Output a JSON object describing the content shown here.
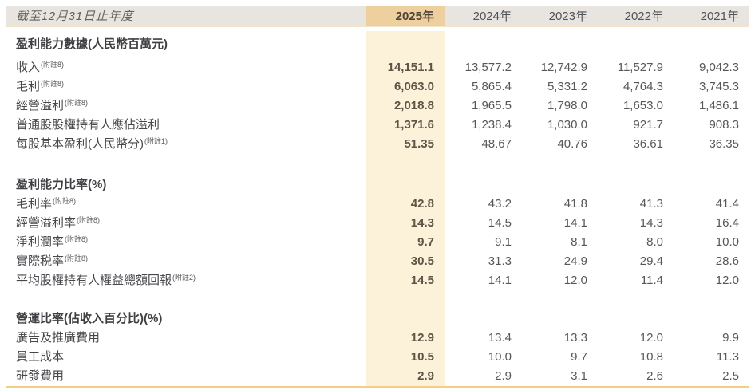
{
  "header": {
    "row_label": "截至12月31日止年度",
    "years": [
      "2025年",
      "2024年",
      "2023年",
      "2022年",
      "2021年"
    ]
  },
  "sections": [
    {
      "title": "盈利能力數據(人民幣百萬元)",
      "rows": [
        {
          "label": "收入",
          "note": "(附註8)",
          "values": [
            "14,151.1",
            "13,577.2",
            "12,742.9",
            "11,527.9",
            "9,042.3"
          ]
        },
        {
          "label": "毛利",
          "note": "(附註8)",
          "values": [
            "6,063.0",
            "5,865.4",
            "5,331.2",
            "4,764.3",
            "3,745.3"
          ]
        },
        {
          "label": "經營溢利",
          "note": "(附註8)",
          "values": [
            "2,018.8",
            "1,965.5",
            "1,798.0",
            "1,653.0",
            "1,486.1"
          ]
        },
        {
          "label": "普通股股權持有人應佔溢利",
          "note": "",
          "values": [
            "1,371.6",
            "1,238.4",
            "1,030.0",
            "921.7",
            "908.3"
          ]
        },
        {
          "label": "每股基本盈利(人民幣分)",
          "note": "(附註1)",
          "values": [
            "51.35",
            "48.67",
            "40.76",
            "36.61",
            "36.35"
          ]
        }
      ]
    },
    {
      "title": "盈利能力比率(%)",
      "rows": [
        {
          "label": "毛利率",
          "note": "(附註8)",
          "values": [
            "42.8",
            "43.2",
            "41.8",
            "41.3",
            "41.4"
          ]
        },
        {
          "label": "經營溢利率",
          "note": "(附註8)",
          "values": [
            "14.3",
            "14.5",
            "14.1",
            "14.3",
            "16.4"
          ]
        },
        {
          "label": "淨利潤率",
          "note": "(附註8)",
          "values": [
            "9.7",
            "9.1",
            "8.1",
            "8.0",
            "10.0"
          ]
        },
        {
          "label": "實際税率",
          "note": "(附註8)",
          "values": [
            "30.5",
            "31.3",
            "24.9",
            "29.4",
            "28.6"
          ]
        },
        {
          "label": "平均股權持有人權益總額回報",
          "note": "(附註2)",
          "values": [
            "14.5",
            "14.1",
            "12.0",
            "11.4",
            "12.0"
          ]
        }
      ]
    },
    {
      "title": "營運比率(佔收入百分比)(%)",
      "rows": [
        {
          "label": "廣告及推廣費用",
          "note": "",
          "values": [
            "12.9",
            "13.4",
            "13.3",
            "12.0",
            "9.9"
          ]
        },
        {
          "label": "員工成本",
          "note": "",
          "values": [
            "10.5",
            "10.0",
            "9.7",
            "10.8",
            "11.3"
          ]
        },
        {
          "label": "研發費用",
          "note": "",
          "values": [
            "2.9",
            "2.9",
            "3.1",
            "2.6",
            "2.5"
          ]
        }
      ]
    }
  ],
  "colors": {
    "highlight_header": "#edd09e",
    "highlight_column": "#fcf1d9",
    "header_band": "#e8e5e1",
    "gold_rule": "#f5cd84",
    "value_2025_text": "#5f5347",
    "value_text": "#56575a"
  }
}
